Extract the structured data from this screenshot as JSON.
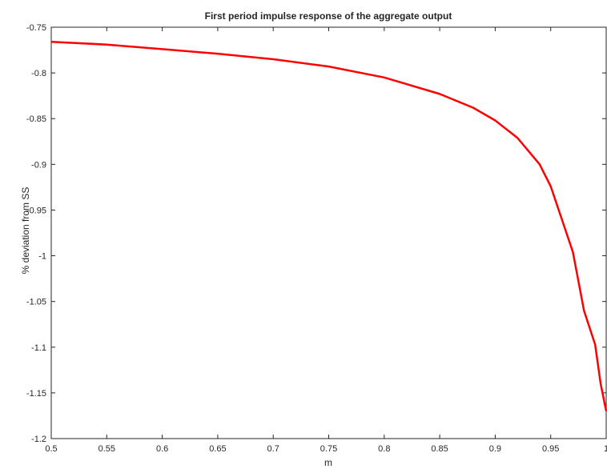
{
  "chart_data": {
    "type": "line",
    "title": "First period impulse response of the aggregate output",
    "xlabel": "m",
    "ylabel": "% deviation from SS",
    "xlim": [
      0.5,
      1
    ],
    "ylim": [
      -1.2,
      -0.75
    ],
    "grid": false,
    "x_ticks": [
      "0.5",
      "0.55",
      "0.6",
      "0.65",
      "0.7",
      "0.75",
      "0.8",
      "0.85",
      "0.9",
      "0.95",
      "1"
    ],
    "y_ticks": [
      "-0.75",
      "-0.8",
      "-0.85",
      "-0.9",
      "-0.95",
      "-1",
      "-1.05",
      "-1.1",
      "-1.15",
      "-1.2"
    ],
    "series": [
      {
        "color": "#ff0000",
        "x": [
          0.5,
          0.55,
          0.6,
          0.65,
          0.7,
          0.75,
          0.8,
          0.85,
          0.88,
          0.9,
          0.92,
          0.94,
          0.95,
          0.96,
          0.97,
          0.98,
          0.99,
          0.995,
          1.0
        ],
        "y": [
          -0.766,
          -0.769,
          -0.774,
          -0.779,
          -0.785,
          -0.793,
          -0.805,
          -0.823,
          -0.838,
          -0.852,
          -0.871,
          -0.9,
          -0.924,
          -0.96,
          -0.996,
          -1.06,
          -1.097,
          -1.14,
          -1.17
        ]
      }
    ]
  }
}
